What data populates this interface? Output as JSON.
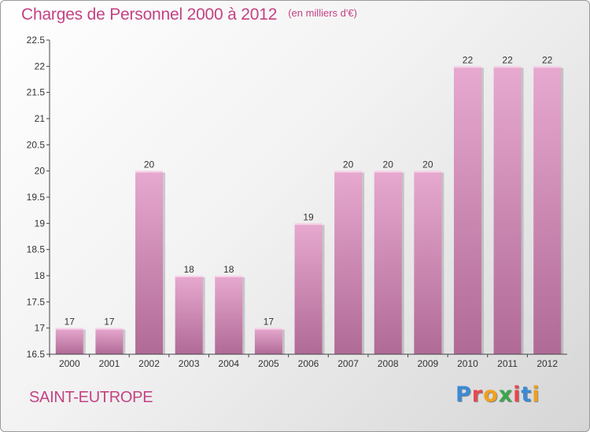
{
  "title": "Charges de Personnel 2000 à 2012",
  "unit_note": "(en milliers d'€)",
  "commune": "SAINT-EUTROPE",
  "logo": {
    "text": "Proxiti",
    "letter_colors": [
      "#3a8ad6",
      "#e8484f",
      "#f0a01e",
      "#3aa64b",
      "#e8484f",
      "#3a8ad6",
      "#f0a01e"
    ]
  },
  "colors": {
    "title": "#c44283",
    "bar_top": "#e7a9cf",
    "bar_bottom": "#b06a96",
    "axis": "#444444"
  },
  "chart_data": {
    "type": "bar",
    "title": "Charges de Personnel 2000 à 2012",
    "xlabel": "",
    "ylabel": "",
    "categories": [
      "2000",
      "2001",
      "2002",
      "2003",
      "2004",
      "2005",
      "2006",
      "2007",
      "2008",
      "2009",
      "2010",
      "2011",
      "2012"
    ],
    "values": [
      17,
      17,
      20,
      18,
      18,
      17,
      19,
      20,
      20,
      20,
      22,
      22,
      22
    ],
    "data_labels": [
      "17",
      "17",
      "20",
      "18",
      "18",
      "17",
      "19",
      "20",
      "20",
      "20",
      "22",
      "22",
      "22"
    ],
    "ylim": [
      16.5,
      22.5
    ],
    "yticks": [
      "16.5",
      "17",
      "17.5",
      "18",
      "18.5",
      "19",
      "19.5",
      "20",
      "20.5",
      "21",
      "21.5",
      "22",
      "22.5"
    ],
    "grid": false,
    "legend": "none"
  }
}
